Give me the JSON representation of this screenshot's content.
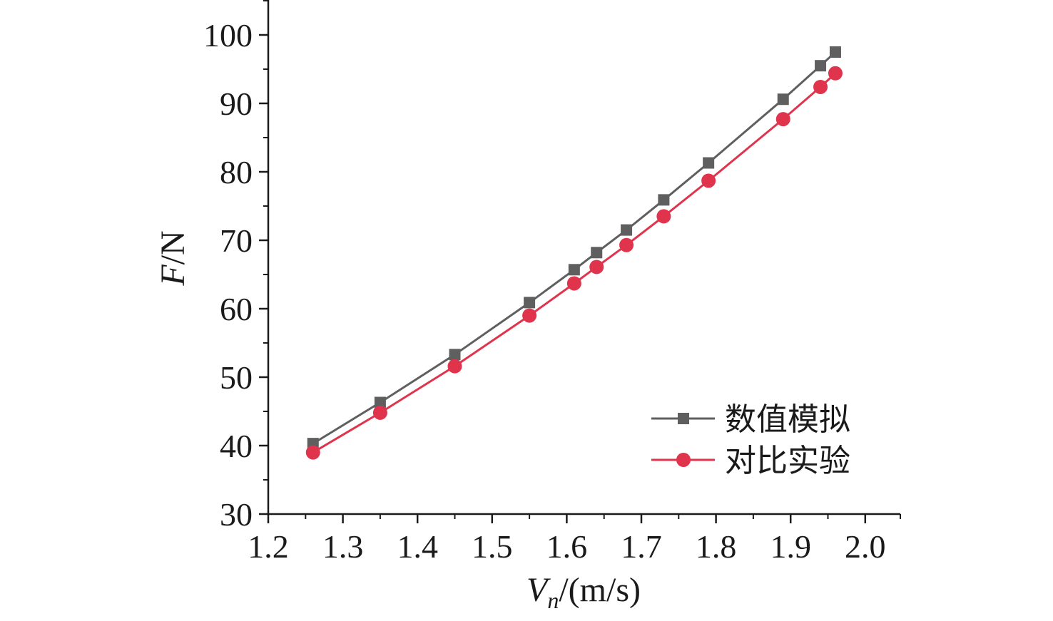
{
  "chart_data": {
    "type": "line",
    "xlabel": {
      "main": "V",
      "sub": "n",
      "rest": "/(m/s)"
    },
    "ylabel": {
      "main": "F",
      "rest": "/N"
    },
    "xlim": [
      1.2,
      2.05
    ],
    "ylim": [
      30,
      105
    ],
    "x_ticks": [
      1.2,
      1.3,
      1.4,
      1.5,
      1.6,
      1.7,
      1.8,
      1.9,
      2.0
    ],
    "x_tick_labels": [
      "1.2",
      "1.3",
      "1.4",
      "1.5",
      "1.6",
      "1.7",
      "1.8",
      "1.9",
      "2.0"
    ],
    "y_ticks": [
      30,
      40,
      50,
      60,
      70,
      80,
      90,
      100
    ],
    "y_tick_labels": [
      "30",
      "40",
      "50",
      "60",
      "70",
      "80",
      "90",
      "100"
    ],
    "grid": false,
    "legend_position": "bottom-right",
    "series": [
      {
        "name": "数值模拟",
        "color": "#5f5f5f",
        "marker": "square",
        "x": [
          1.26,
          1.35,
          1.45,
          1.55,
          1.61,
          1.64,
          1.68,
          1.73,
          1.79,
          1.89,
          1.94,
          1.96
        ],
        "y": [
          40.3,
          46.3,
          53.3,
          60.9,
          65.7,
          68.2,
          71.5,
          75.9,
          81.3,
          90.6,
          95.5,
          97.5
        ]
      },
      {
        "name": "对比实验",
        "color": "#e0334c",
        "marker": "circle",
        "x": [
          1.26,
          1.35,
          1.45,
          1.55,
          1.61,
          1.64,
          1.68,
          1.73,
          1.79,
          1.89,
          1.94,
          1.96
        ],
        "y": [
          39.0,
          44.8,
          51.6,
          59.0,
          63.7,
          66.1,
          69.3,
          73.5,
          78.7,
          87.7,
          92.4,
          94.4
        ]
      }
    ]
  }
}
